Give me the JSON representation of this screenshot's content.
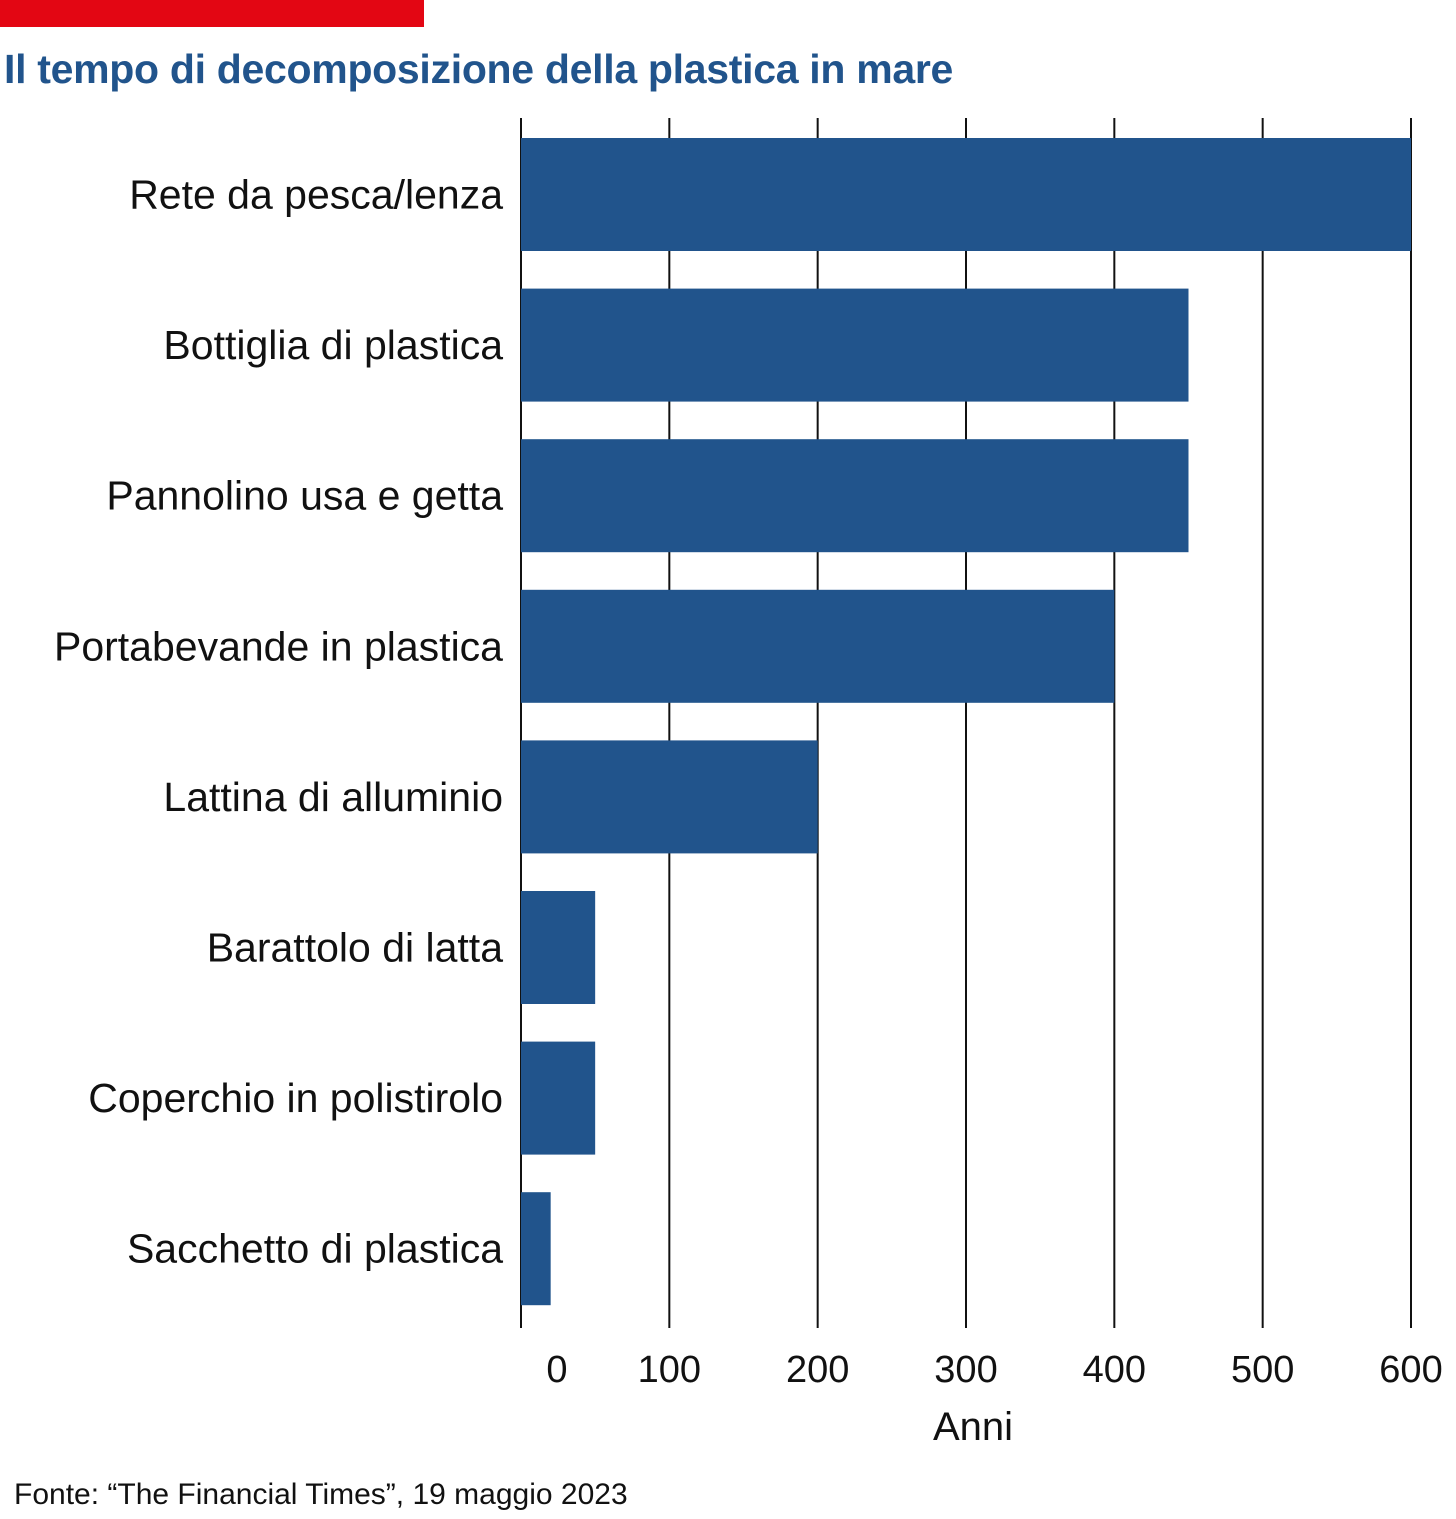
{
  "title": "Il tempo di decomposizione della plastica in mare",
  "source": "Fonte: “The Financial Times”, 19 maggio 2023",
  "colors": {
    "accent": "#e30613",
    "title": "#21548c",
    "bar": "#21548c",
    "grid": "#111111"
  },
  "chart_data": {
    "type": "bar",
    "orientation": "horizontal",
    "categories": [
      "Rete da pesca/lenza",
      "Bottiglia di plastica",
      "Pannolino usa e getta",
      "Portabevande in plastica",
      "Lattina di alluminio",
      "Barattolo di latta",
      "Coperchio in polistirolo",
      "Sacchetto di plastica"
    ],
    "values": [
      600,
      450,
      450,
      400,
      200,
      50,
      50,
      20
    ],
    "xlabel": "Anni",
    "ylabel": "",
    "xlim": [
      0,
      600
    ],
    "xticks": [
      0,
      100,
      200,
      300,
      400,
      500,
      600
    ],
    "grid": "vertical",
    "legend": "none"
  }
}
